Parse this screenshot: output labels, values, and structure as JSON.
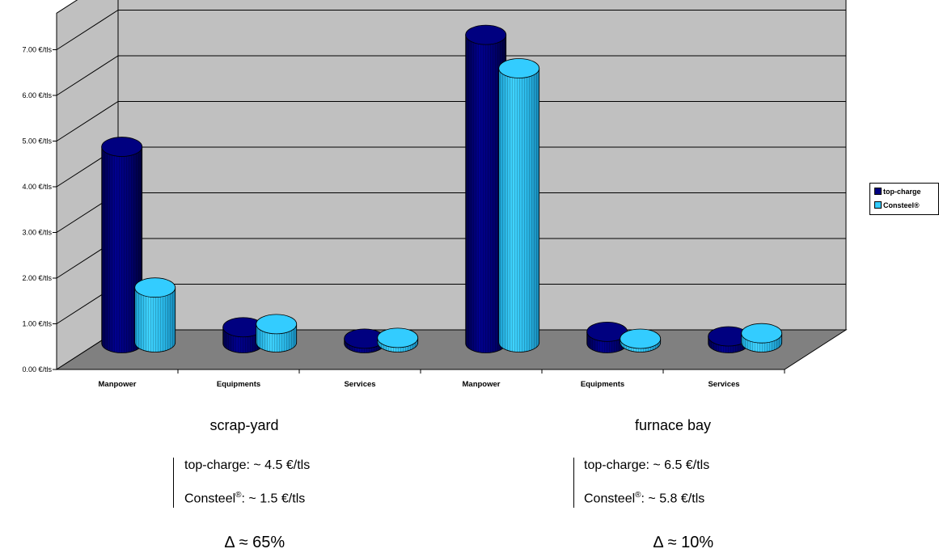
{
  "chart_data": {
    "type": "bar",
    "categories": [
      "Manpower",
      "Equipments",
      "Services",
      "Manpower",
      "Equipments",
      "Services"
    ],
    "series": [
      {
        "name": "top-charge",
        "values": [
          4.3,
          0.35,
          0.1,
          6.75,
          0.25,
          0.15
        ],
        "color": "#000080"
      },
      {
        "name": "Consteel®",
        "values": [
          1.2,
          0.4,
          0.1,
          6.0,
          0.08,
          0.2
        ],
        "color": "#33CCFF"
      }
    ],
    "ylim": [
      0,
      7
    ],
    "yticks": [
      {
        "value": 0,
        "label": "0.00 €/tls"
      },
      {
        "value": 1,
        "label": "1.00 €/tls"
      },
      {
        "value": 2,
        "label": "2.00 €/tls"
      },
      {
        "value": 3,
        "label": "3.00 €/tls"
      },
      {
        "value": 4,
        "label": "4.00 €/tls"
      },
      {
        "value": 5,
        "label": "5.00 €/tls"
      },
      {
        "value": 6,
        "label": "6.00 €/tls"
      },
      {
        "value": 7,
        "label": "7.00 €/tls"
      }
    ],
    "grid": true,
    "legend_position": "right",
    "wall_color": "#C0C0C0",
    "floor_color": "#808080"
  },
  "groups": [
    {
      "title": "scrap-yard",
      "line1": "top-charge: ~ 4.5 €/tls",
      "line2_prefix": "Consteel",
      "line2_sup": "®",
      "line2_suffix": ":  ~ 1.5 €/tls",
      "delta": "∆ ≈ 65%"
    },
    {
      "title": "furnace bay",
      "line1": "top-charge: ~ 6.5 €/tls",
      "line2_prefix": "Consteel",
      "line2_sup": "®",
      "line2_suffix": ":  ~ 5.8 €/tls",
      "delta": "∆ ≈ 10%"
    }
  ]
}
